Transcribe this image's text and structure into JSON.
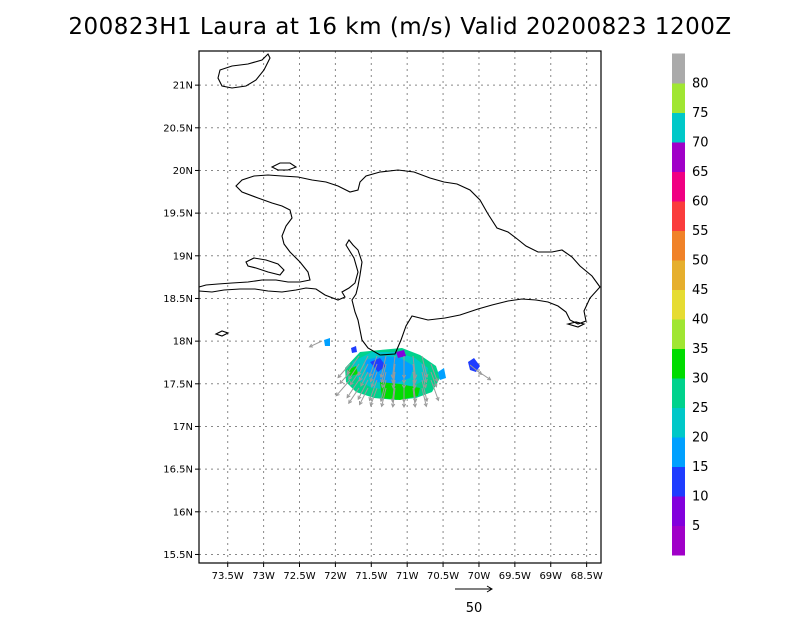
{
  "title": "200823H1 Laura at 16 km (m/s) Valid 20200823 1200Z",
  "map": {
    "lon_range": [
      -73.9,
      -68.3
    ],
    "lat_range": [
      15.4,
      21.4
    ],
    "lat_ticks": [
      {
        "value": 21.0,
        "label": "21N"
      },
      {
        "value": 20.5,
        "label": "20.5N"
      },
      {
        "value": 20.0,
        "label": "20N"
      },
      {
        "value": 19.5,
        "label": "19.5N"
      },
      {
        "value": 19.0,
        "label": "19N"
      },
      {
        "value": 18.5,
        "label": "18.5N"
      },
      {
        "value": 18.0,
        "label": "18N"
      },
      {
        "value": 17.5,
        "label": "17.5N"
      },
      {
        "value": 17.0,
        "label": "17N"
      },
      {
        "value": 16.5,
        "label": "16.5N"
      },
      {
        "value": 16.0,
        "label": "16N"
      },
      {
        "value": 15.5,
        "label": "15.5N"
      }
    ],
    "lon_ticks": [
      {
        "value": -73.5,
        "label": "73.5W"
      },
      {
        "value": -73.0,
        "label": "73W"
      },
      {
        "value": -72.5,
        "label": "72.5W"
      },
      {
        "value": -72.0,
        "label": "72W"
      },
      {
        "value": -71.5,
        "label": "71.5W"
      },
      {
        "value": -71.0,
        "label": "71W"
      },
      {
        "value": -70.5,
        "label": "70.5W"
      },
      {
        "value": -70.0,
        "label": "70W"
      },
      {
        "value": -69.5,
        "label": "69.5W"
      },
      {
        "value": -69.0,
        "label": "69W"
      },
      {
        "value": -68.5,
        "label": "68.5W"
      }
    ],
    "grid": true,
    "colorbar": {
      "labels": [
        "5",
        "10",
        "15",
        "20",
        "25",
        "30",
        "35",
        "40",
        "45",
        "50",
        "55",
        "60",
        "65",
        "70",
        "75",
        "80"
      ],
      "colors": [
        "#a000c8",
        "#8200dc",
        "#1e3cff",
        "#00a0ff",
        "#00c8c8",
        "#00d28c",
        "#00dc00",
        "#a0e632",
        "#e6dc32",
        "#e6af2d",
        "#f08228",
        "#fa3c3c",
        "#f00082",
        "#a000c8",
        "#00c8c8",
        "#a0e632",
        "#aaaaaa"
      ]
    },
    "reference_vector": {
      "label": "50"
    }
  }
}
